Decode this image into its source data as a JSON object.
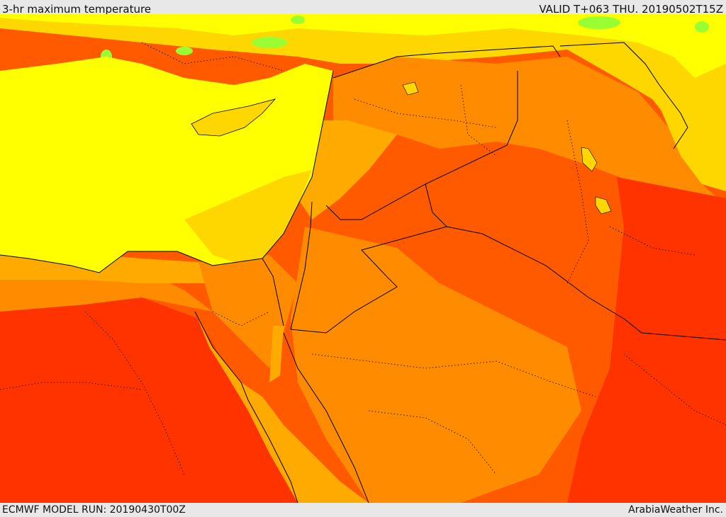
{
  "header": {
    "title": "3-hr maximum temperature",
    "valid": "VALID T+063 THU. 20190502T15Z"
  },
  "footer": {
    "model_run": "ECMWF MODEL RUN: 20190430T00Z",
    "credit": "ArabiaWeather Inc."
  },
  "colors": {
    "sea_yellow": "#ffff00",
    "warm_gold": "#ffd700",
    "orange_light": "#ffaa00",
    "orange": "#ff8c00",
    "orange_red": "#ff5a00",
    "red": "#ff3300",
    "green": "#99ff33"
  }
}
